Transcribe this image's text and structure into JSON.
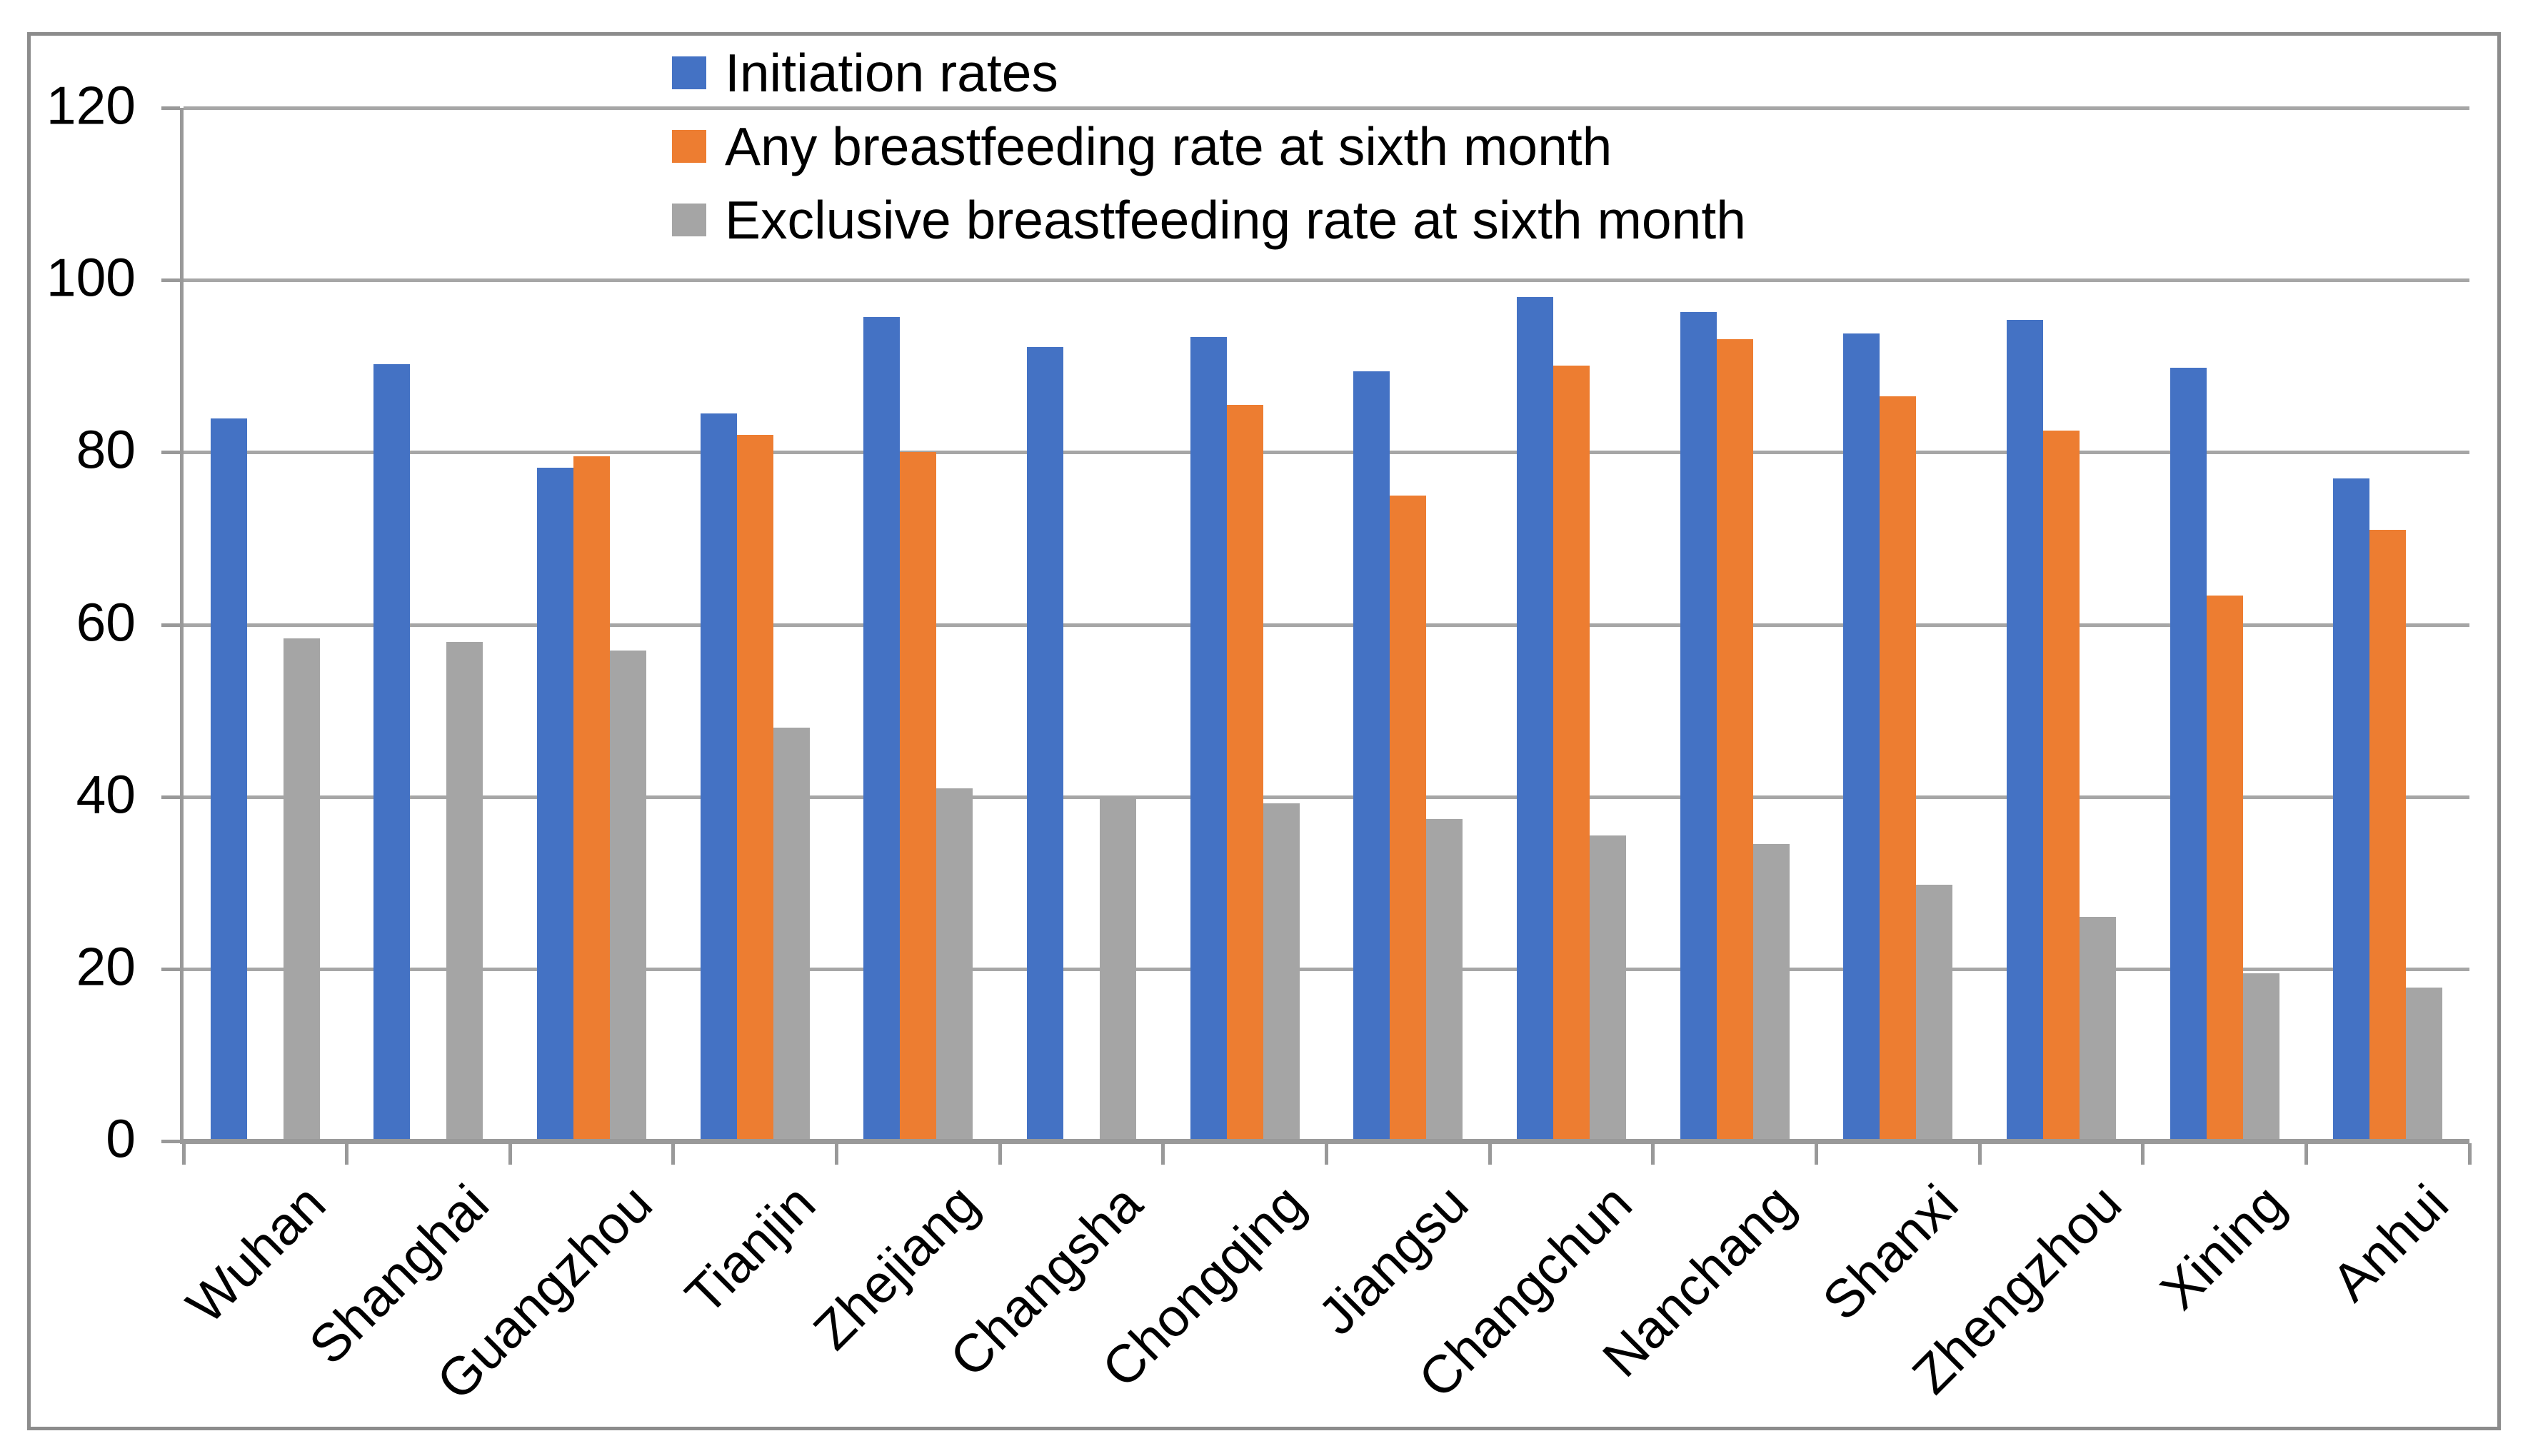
{
  "chart_data": {
    "type": "bar",
    "title": "",
    "xlabel": "",
    "ylabel": "",
    "categories": [
      "Wuhan",
      "Shanghai",
      "Guangzhou",
      "Tianjin",
      "Zhejiang",
      "Changsha",
      "Chongqing",
      "Jiangsu",
      "Changchun",
      "Nanchang",
      "Shanxi",
      "Zhengzhou",
      "Xining",
      "Anhui"
    ],
    "series": [
      {
        "name": "Initiation rates",
        "color": "#4472C4",
        "values": [
          83.9,
          90.2,
          78.2,
          84.5,
          95.7,
          92.2,
          93.4,
          89.4,
          98.0,
          96.3,
          93.8,
          95.4,
          89.8,
          77.0
        ]
      },
      {
        "name": "Any breastfeeding rate at sixth month",
        "color": "#ED7D31",
        "values": [
          null,
          null,
          79.5,
          82.0,
          80.0,
          null,
          85.5,
          75.0,
          90.1,
          93.1,
          86.5,
          82.5,
          63.4,
          71.0
        ]
      },
      {
        "name": "Exclusive breastfeeding rate at sixth month",
        "color": "#A5A5A5",
        "values": [
          58.4,
          58.0,
          57.0,
          48.0,
          41.0,
          40.0,
          39.2,
          37.4,
          35.5,
          34.5,
          29.8,
          26.0,
          19.5,
          17.8
        ]
      }
    ],
    "ylim": [
      0,
      120
    ],
    "ytick_step": 20,
    "ytick_labels": [
      "0",
      "20",
      "40",
      "60",
      "80",
      "100",
      "120"
    ],
    "grid": true,
    "legend_position": "top",
    "gridline_color": "#A6A6A6",
    "axis_color": "#999999",
    "border_color": "#8C8C8C",
    "background": "#FFFFFF"
  }
}
